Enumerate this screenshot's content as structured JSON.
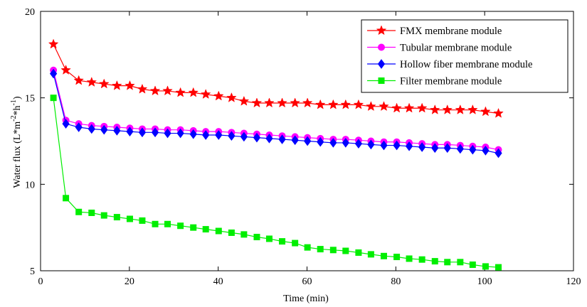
{
  "chart_data": {
    "type": "line",
    "title": "",
    "xlabel": "Time (min)",
    "ylabel": {
      "base": "Water flux (L*m",
      "sup1": "-2",
      "mid": "*h",
      "sup2": "-1",
      "end": ")"
    },
    "xlim": [
      0,
      120
    ],
    "ylim": [
      5,
      20
    ],
    "xticks": [
      0,
      20,
      40,
      60,
      80,
      100,
      120
    ],
    "yticks": [
      5,
      10,
      15,
      20
    ],
    "grid": false,
    "legend_position": "top-right",
    "x": [
      2.9,
      5.7,
      8.6,
      11.5,
      14.3,
      17.2,
      20.1,
      22.9,
      25.8,
      28.6,
      31.5,
      34.4,
      37.2,
      40.1,
      43.0,
      45.8,
      48.7,
      51.5,
      54.4,
      57.3,
      60.1,
      63.0,
      65.9,
      68.7,
      71.6,
      74.4,
      77.3,
      80.2,
      83.0,
      85.9,
      88.8,
      91.6,
      94.5,
      97.3,
      100.2,
      103.1
    ],
    "series": [
      {
        "name": "FMX membrane module",
        "color": "#ff0000",
        "marker": "star",
        "values": [
          18.1,
          16.6,
          16.0,
          15.9,
          15.8,
          15.7,
          15.7,
          15.5,
          15.4,
          15.4,
          15.3,
          15.3,
          15.2,
          15.1,
          15.0,
          14.8,
          14.7,
          14.7,
          14.7,
          14.7,
          14.7,
          14.6,
          14.6,
          14.6,
          14.6,
          14.5,
          14.5,
          14.4,
          14.4,
          14.4,
          14.3,
          14.3,
          14.3,
          14.3,
          14.2,
          14.1
        ]
      },
      {
        "name": "Tubular membrane module",
        "color": "#ff00ff",
        "marker": "circle",
        "values": [
          16.6,
          13.7,
          13.5,
          13.4,
          13.35,
          13.3,
          13.25,
          13.2,
          13.2,
          13.15,
          13.15,
          13.1,
          13.05,
          13.05,
          13.0,
          12.95,
          12.9,
          12.85,
          12.8,
          12.75,
          12.7,
          12.65,
          12.6,
          12.6,
          12.55,
          12.5,
          12.45,
          12.45,
          12.4,
          12.35,
          12.3,
          12.3,
          12.25,
          12.2,
          12.15,
          12.0
        ]
      },
      {
        "name": "Hollow fiber membrane module",
        "color": "#0000ff",
        "marker": "diamond",
        "values": [
          16.4,
          13.5,
          13.3,
          13.2,
          13.15,
          13.1,
          13.05,
          13.0,
          13.0,
          12.95,
          12.95,
          12.9,
          12.85,
          12.85,
          12.8,
          12.75,
          12.7,
          12.65,
          12.6,
          12.55,
          12.5,
          12.45,
          12.4,
          12.4,
          12.35,
          12.3,
          12.25,
          12.25,
          12.2,
          12.15,
          12.1,
          12.1,
          12.05,
          12.0,
          11.95,
          11.8
        ]
      },
      {
        "name": "Filter membrane module",
        "color": "#00ee00",
        "marker": "square",
        "values": [
          15.0,
          9.2,
          8.4,
          8.35,
          8.2,
          8.1,
          8.0,
          7.9,
          7.7,
          7.7,
          7.6,
          7.5,
          7.4,
          7.3,
          7.2,
          7.1,
          6.95,
          6.85,
          6.7,
          6.6,
          6.35,
          6.25,
          6.2,
          6.15,
          6.05,
          5.95,
          5.85,
          5.8,
          5.7,
          5.65,
          5.55,
          5.5,
          5.5,
          5.35,
          5.25,
          5.2
        ]
      }
    ]
  }
}
